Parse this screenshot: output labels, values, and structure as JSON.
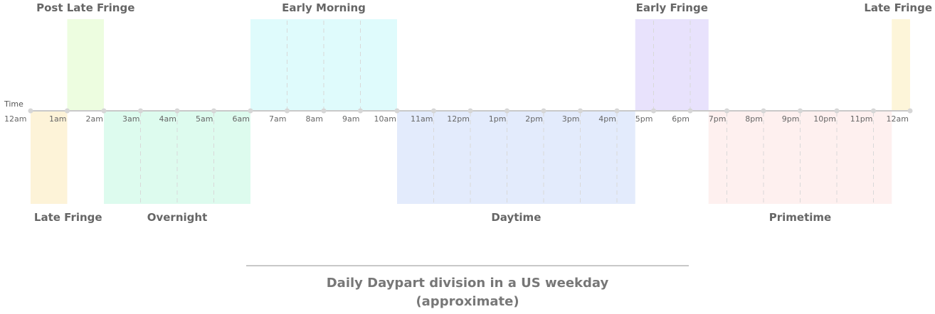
{
  "axis_label": "Time",
  "caption": {
    "line1": "Daily Daypart division in a US weekday",
    "line2": "(approximate)"
  },
  "hours": [
    "12am",
    "1am",
    "2am",
    "3am",
    "4am",
    "5am",
    "6am",
    "7am",
    "8am",
    "9am",
    "10am",
    "11am",
    "12pm",
    "1pm",
    "2pm",
    "3pm",
    "4pm",
    "5pm",
    "6pm",
    "7pm",
    "8pm",
    "9pm",
    "10pm",
    "11pm",
    "12am"
  ],
  "segments": [
    {
      "id": "late-fringe-early",
      "label": "Late Fringe",
      "start": 0,
      "end": 1,
      "side": "below",
      "color": "#fdf3d8"
    },
    {
      "id": "post-late-fringe",
      "label": "Post Late Fringe",
      "start": 1,
      "end": 2,
      "side": "above",
      "color": "#edfde0"
    },
    {
      "id": "overnight",
      "label": "Overnight",
      "start": 2,
      "end": 6,
      "side": "below",
      "color": "#ddfbee"
    },
    {
      "id": "early-morning",
      "label": "Early Morning",
      "start": 6,
      "end": 10,
      "side": "above",
      "color": "#dffbfc"
    },
    {
      "id": "daytime",
      "label": "Daytime",
      "start": 10,
      "end": 16.5,
      "side": "below",
      "color": "#e3ebfc"
    },
    {
      "id": "early-fringe",
      "label": "Early Fringe",
      "start": 16.5,
      "end": 18.5,
      "side": "above",
      "color": "#e8e2fc"
    },
    {
      "id": "primetime",
      "label": "Primetime",
      "start": 18.5,
      "end": 23.5,
      "side": "below",
      "color": "#fef0ef"
    },
    {
      "id": "late-fringe-late",
      "label": "Late Fringe",
      "start": 23.5,
      "end": 24,
      "side": "above",
      "color": "#fdf5d9"
    }
  ],
  "colors": {
    "axis_line": "#c9c9c9",
    "tick_dot": "#d6d6d6",
    "divider": "#d9d9d9",
    "text": "#666666"
  }
}
